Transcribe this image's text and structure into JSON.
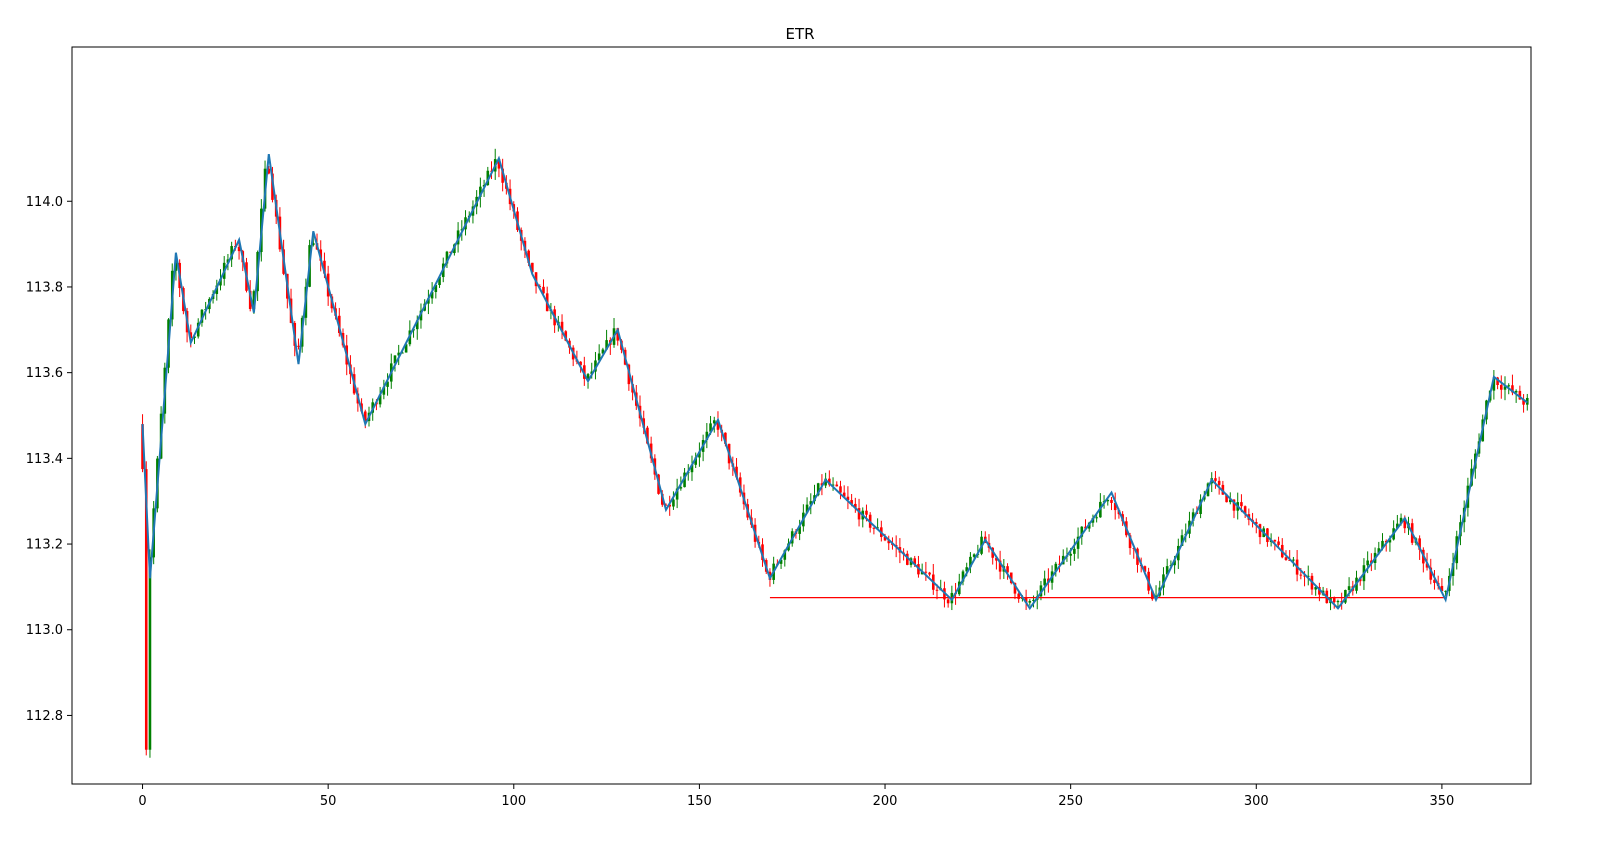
{
  "chart_data": {
    "type": "candlestick",
    "title": "ETR",
    "xlabel": "",
    "ylabel": "",
    "xlim": [
      -19,
      374
    ],
    "ylim": [
      112.64,
      114.36
    ],
    "x_ticks": [
      0,
      50,
      100,
      150,
      200,
      250,
      300,
      350
    ],
    "y_ticks": [
      112.8,
      113.0,
      113.2,
      113.4,
      113.6,
      113.8,
      114.0
    ],
    "grid": false,
    "legend": "none",
    "colors": {
      "up": "#008000",
      "down": "#ff0000",
      "zigzag": "#1f77b4",
      "support": "#ff0000"
    },
    "zigzag": {
      "x": [
        0,
        2,
        7,
        9,
        13,
        26,
        30,
        34,
        42,
        46,
        60,
        96,
        105,
        120,
        128,
        141,
        155,
        169,
        184,
        218,
        227,
        239,
        261,
        273,
        288,
        322,
        340,
        351,
        364,
        373
      ],
      "y": [
        113.48,
        113.12,
        113.66,
        113.88,
        113.67,
        113.91,
        113.74,
        114.11,
        113.62,
        113.93,
        113.48,
        114.1,
        113.83,
        113.58,
        113.7,
        113.28,
        113.49,
        113.12,
        113.35,
        113.07,
        113.21,
        113.05,
        113.32,
        113.07,
        113.35,
        113.05,
        113.26,
        113.07,
        113.59,
        113.53
      ]
    },
    "support_line": {
      "x": [
        169,
        351
      ],
      "y": 113.075
    }
  }
}
